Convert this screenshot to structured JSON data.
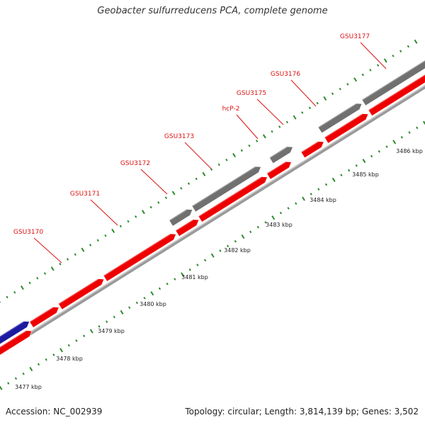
{
  "title": "Geobacter sulfurreducens PCA, complete genome",
  "footer": {
    "accession": "Accession: NC_002939",
    "summary": "Topology: circular; Length: 3,814,139 bp; Genes: 3,502"
  },
  "colors": {
    "cds": "#ee0000",
    "other_strand": "#707070",
    "blue_feature": "#1c1aa0",
    "label": "#dd1111",
    "ticks": "#2e8b2e",
    "backbone": "#a8a8a8"
  },
  "gene_labels": [
    "GSU3170",
    "GSU3171",
    "GSU3172",
    "GSU3173",
    "hcP-2",
    "GSU3175",
    "GSU3176",
    "GSU3177"
  ],
  "kbp_labels": [
    "3477 kbp",
    "3478 kbp",
    "3479 kbp",
    "3480 kbp",
    "3481 kbp",
    "3482 kbp",
    "3483 kbp",
    "3484 kbp",
    "3485 kbp",
    "3486 kbp"
  ]
}
